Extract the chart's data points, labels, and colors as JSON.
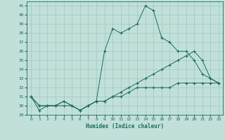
{
  "xlabel": "Humidex (Indice chaleur)",
  "bg_color": "#c2e0da",
  "grid_color": "#9dc8c0",
  "line_color": "#1a6b60",
  "xlim": [
    -0.5,
    23.5
  ],
  "ylim": [
    29,
    41.5
  ],
  "xticks": [
    0,
    1,
    2,
    3,
    4,
    5,
    6,
    7,
    8,
    9,
    10,
    11,
    12,
    13,
    14,
    15,
    16,
    17,
    18,
    19,
    20,
    21,
    22,
    23
  ],
  "yticks": [
    29,
    30,
    31,
    32,
    33,
    34,
    35,
    36,
    37,
    38,
    39,
    40,
    41
  ],
  "line1_x": [
    0,
    1,
    2,
    3,
    4,
    5,
    6,
    7,
    8,
    9,
    10,
    11,
    12,
    13,
    14,
    15,
    16,
    17,
    18,
    19,
    20,
    21,
    22,
    23
  ],
  "line1_y": [
    31,
    29.5,
    30,
    30,
    30.5,
    30,
    29.5,
    30,
    30.5,
    36,
    38.5,
    38,
    38.5,
    39,
    41,
    40.5,
    37.5,
    37,
    36,
    36,
    35,
    33.5,
    33,
    32.5
  ],
  "line2_x": [
    0,
    1,
    2,
    3,
    4,
    5,
    6,
    7,
    8,
    9,
    10,
    11,
    12,
    13,
    14,
    15,
    16,
    17,
    18,
    19,
    20,
    21,
    22,
    23
  ],
  "line2_y": [
    31,
    30,
    30,
    30,
    30.5,
    30,
    29.5,
    30,
    30.5,
    30.5,
    31,
    31.5,
    32,
    32.5,
    33,
    33.5,
    34,
    34.5,
    35,
    35.5,
    36,
    35,
    33,
    32.5
  ],
  "line3_x": [
    0,
    1,
    2,
    3,
    4,
    5,
    6,
    7,
    8,
    9,
    10,
    11,
    12,
    13,
    14,
    15,
    16,
    17,
    18,
    19,
    20,
    21,
    22,
    23
  ],
  "line3_y": [
    31,
    30,
    30,
    30,
    30,
    30,
    29.5,
    30,
    30.5,
    30.5,
    31,
    31,
    31.5,
    32,
    32,
    32,
    32,
    32,
    32.5,
    32.5,
    32.5,
    32.5,
    32.5,
    32.5
  ]
}
